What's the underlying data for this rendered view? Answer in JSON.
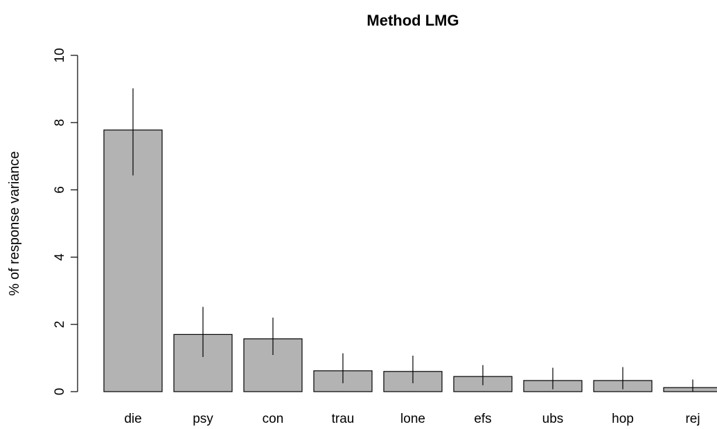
{
  "chart_data": {
    "type": "bar",
    "title": "Method LMG",
    "xlabel": "",
    "ylabel": "% of response variance",
    "ylim": [
      0,
      10
    ],
    "yticks": [
      0,
      2,
      4,
      6,
      8,
      10
    ],
    "categories": [
      "die",
      "psy",
      "con",
      "trau",
      "lone",
      "efs",
      "ubs",
      "hop",
      "rej"
    ],
    "values": [
      7.78,
      1.7,
      1.57,
      0.62,
      0.6,
      0.45,
      0.33,
      0.33,
      0.12
    ],
    "error_low": [
      6.43,
      1.03,
      1.09,
      0.25,
      0.25,
      0.19,
      0.07,
      0.07,
      0.01
    ],
    "error_high": [
      9.02,
      2.52,
      2.2,
      1.14,
      1.07,
      0.79,
      0.71,
      0.73,
      0.36
    ],
    "bar_color": "#b3b3b3",
    "grid": false,
    "legend": "none"
  }
}
